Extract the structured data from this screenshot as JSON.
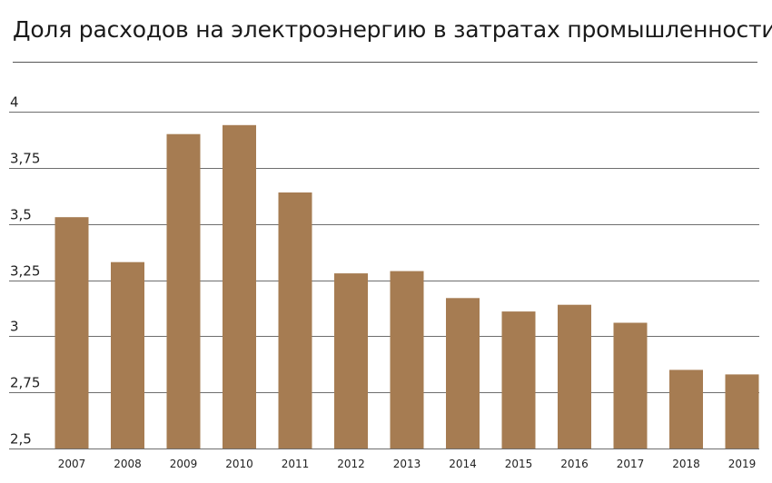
{
  "chart_data": {
    "type": "bar",
    "title": "Доля расходов на электроэнергию в затратах промышленности",
    "xlabel": "",
    "ylabel": "",
    "categories": [
      "2007",
      "2008",
      "2009",
      "2010",
      "2011",
      "2012",
      "2013",
      "2014",
      "2015",
      "2016",
      "2017",
      "2018",
      "2019"
    ],
    "values": [
      3.53,
      3.33,
      3.9,
      3.94,
      3.64,
      3.28,
      3.29,
      3.17,
      3.11,
      3.14,
      3.06,
      2.85,
      2.83
    ],
    "ylim": [
      2.5,
      4
    ],
    "yticks": [
      4,
      3.75,
      3.5,
      3.25,
      3,
      2.75,
      2.5
    ],
    "ytick_labels": [
      "4",
      "3,75",
      "3,5",
      "3,25",
      "3",
      "2,75",
      "2,5"
    ],
    "grid": true,
    "colors": {
      "bar": "#a67c52",
      "grid": "#6e6e6e"
    }
  }
}
